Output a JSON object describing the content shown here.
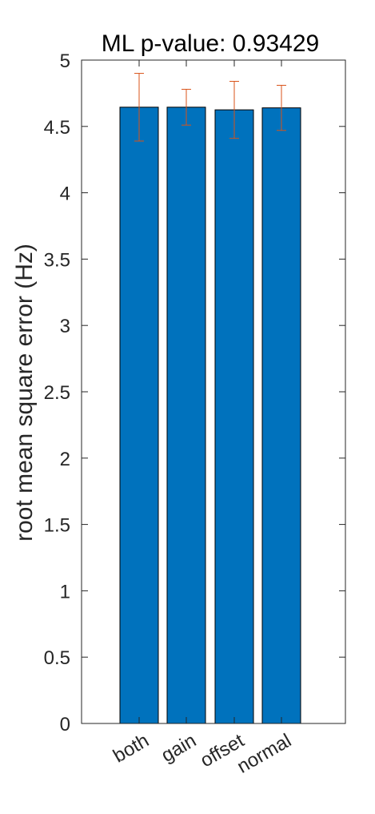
{
  "chart_data": {
    "type": "bar",
    "title": "ML p-value: 0.93429",
    "xlabel": "",
    "ylabel": "root mean square error (Hz)",
    "categories": [
      "both",
      "gain",
      "offset",
      "normal"
    ],
    "values": [
      4.645,
      4.645,
      4.625,
      4.64
    ],
    "error_low": [
      4.39,
      4.51,
      4.41,
      4.47
    ],
    "error_high": [
      4.9,
      4.78,
      4.84,
      4.81
    ],
    "ylim": [
      0,
      5
    ],
    "yticks": [
      "0",
      "0.5",
      "1",
      "1.5",
      "2",
      "2.5",
      "3",
      "3.5",
      "4",
      "4.5",
      "5"
    ],
    "bar_color": "#0072BD",
    "error_color": "#D95319",
    "grid": false
  }
}
